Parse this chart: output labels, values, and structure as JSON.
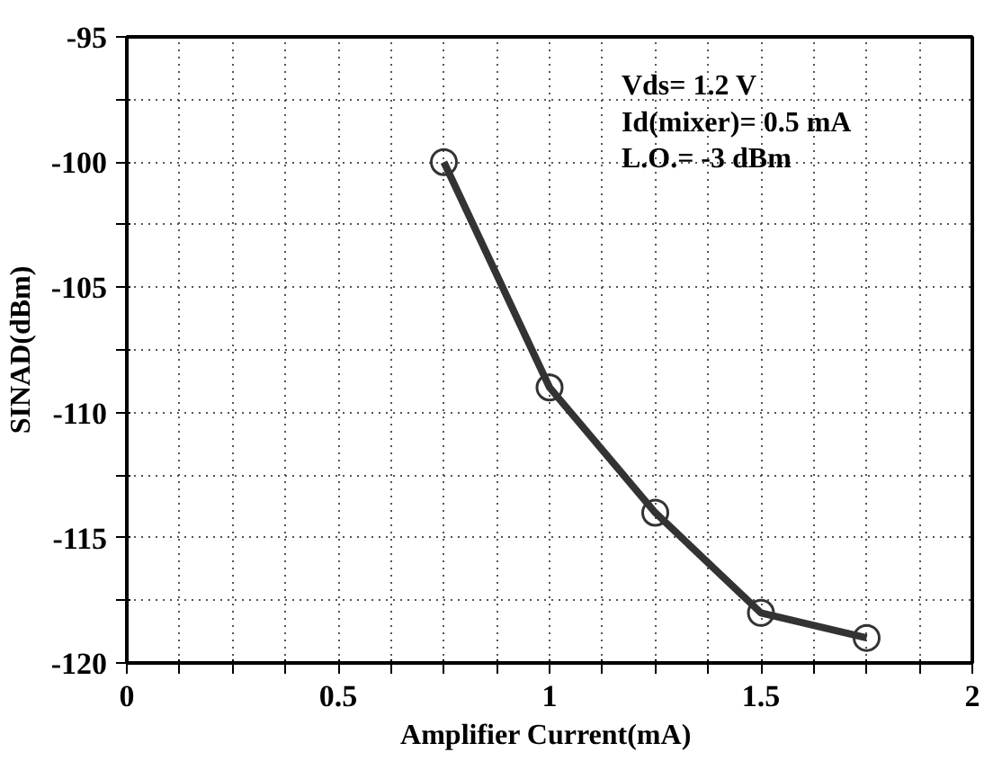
{
  "chart_data": {
    "type": "line",
    "xlabel": "Amplifier  Current(mA)",
    "ylabel": "SINAD(dBm)",
    "x": [
      0.75,
      1,
      1.25,
      1.5,
      1.75
    ],
    "series": [
      {
        "color": "#333333",
        "values": [
          -100,
          -109,
          -114,
          -118,
          -119
        ]
      }
    ],
    "xlim": [
      0,
      2
    ],
    "ylim": [
      -120,
      -95
    ],
    "xticks": [
      0,
      {
        "value": 0.125,
        "label": null
      },
      {
        "value": 0.25,
        "label": null
      },
      {
        "value": 0.375,
        "label": null
      },
      0.5,
      {
        "value": 0.625,
        "label": null
      },
      {
        "value": 0.75,
        "label": null
      },
      {
        "value": 0.875,
        "label": null
      },
      1,
      {
        "value": 1.125,
        "label": null
      },
      {
        "value": 1.25,
        "label": null
      },
      {
        "value": 1.375,
        "label": null
      },
      1.5,
      {
        "value": 1.625,
        "label": null
      },
      {
        "value": 1.75,
        "label": null
      },
      {
        "value": 1.875,
        "label": null
      },
      2
    ],
    "yticks": [
      -120,
      {
        "value": -117.5,
        "label": null
      },
      -115,
      {
        "value": -112.5,
        "label": null
      },
      -110,
      {
        "value": -107.5,
        "label": null
      },
      -105,
      {
        "value": -102.5,
        "label": null
      },
      -100,
      {
        "value": -97.5,
        "label": null
      },
      -95
    ],
    "annotations": [
      "Vds=  1.2  V",
      "Id(mixer)=  0.5  mA",
      "L.O.=  -3  dBm"
    ],
    "grid": true,
    "marker": "circle",
    "line_style": "solid"
  }
}
